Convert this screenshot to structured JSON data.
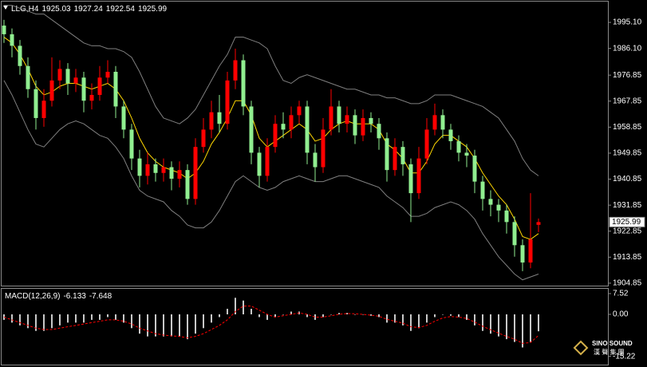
{
  "chart_data": [
    {
      "type": "candlestick",
      "title": "LLG,H4",
      "up_color": "#ff0000",
      "down_color": "#90ee90",
      "open": [
        1994,
        1991,
        1987,
        1980,
        1972,
        1962,
        1968,
        1975,
        1979,
        1974,
        1976,
        1968,
        1970,
        1976,
        1978,
        1966,
        1958,
        1948,
        1942,
        1946,
        1943,
        1945,
        1941,
        1944,
        1934,
        1952,
        1958,
        1964,
        1960,
        1975,
        1982,
        1966,
        1950,
        1942,
        1952,
        1960,
        1958,
        1963,
        1966,
        1950,
        1945,
        1958,
        1966,
        1960,
        1963,
        1956,
        1962,
        1960,
        1955,
        1944,
        1952,
        1946,
        1936,
        1948,
        1958,
        1963,
        1958,
        1954,
        1950,
        1949,
        1940,
        1934,
        1932,
        1930,
        1926,
        1918,
        1912,
        1925.03
      ],
      "high": [
        1996,
        1993,
        1989,
        1983,
        1975,
        1972,
        1983,
        1982,
        1981,
        1979,
        1978,
        1974,
        1980,
        1982,
        1980,
        1968,
        1960,
        1951,
        1950,
        1948,
        1948,
        1947,
        1947,
        1946,
        1955,
        1962,
        1968,
        1970,
        1978,
        1986,
        1984,
        1968,
        1952,
        1955,
        1963,
        1964,
        1966,
        1968,
        1968,
        1953,
        1962,
        1972,
        1968,
        1966,
        1965,
        1965,
        1964,
        1962,
        1957,
        1955,
        1954,
        1948,
        1952,
        1962,
        1967,
        1965,
        1960,
        1956,
        1953,
        1951,
        1942,
        1937,
        1934,
        1932,
        1928,
        1920,
        1936,
        1927.24
      ],
      "low": [
        1988,
        1983,
        1977,
        1969,
        1958,
        1959,
        1966,
        1972,
        1970,
        1971,
        1964,
        1965,
        1968,
        1974,
        1962,
        1955,
        1944,
        1938,
        1939,
        1940,
        1940,
        1937,
        1938,
        1932,
        1932,
        1950,
        1955,
        1957,
        1958,
        1972,
        1963,
        1946,
        1938,
        1940,
        1950,
        1955,
        1955,
        1960,
        1946,
        1940,
        1943,
        1956,
        1957,
        1957,
        1953,
        1954,
        1957,
        1951,
        1940,
        1942,
        1942,
        1926,
        1934,
        1946,
        1956,
        1955,
        1951,
        1947,
        1945,
        1936,
        1930,
        1928,
        1926,
        1922,
        1914,
        1909,
        1910,
        1922.54
      ],
      "close": [
        1991,
        1987,
        1980,
        1972,
        1962,
        1968,
        1975,
        1979,
        1974,
        1976,
        1968,
        1970,
        1976,
        1978,
        1966,
        1958,
        1948,
        1942,
        1946,
        1943,
        1945,
        1941,
        1944,
        1934,
        1952,
        1958,
        1964,
        1960,
        1975,
        1982,
        1966,
        1950,
        1942,
        1952,
        1960,
        1958,
        1963,
        1966,
        1950,
        1945,
        1958,
        1966,
        1960,
        1963,
        1956,
        1962,
        1960,
        1955,
        1944,
        1952,
        1946,
        1936,
        1948,
        1958,
        1963,
        1958,
        1954,
        1950,
        1949,
        1940,
        1934,
        1932,
        1930,
        1926,
        1918,
        1912,
        1920,
        1925.99
      ],
      "series": [
        {
          "color": "#ffd700",
          "values": [
            1990,
            1988,
            1984,
            1979,
            1973,
            1970,
            1971,
            1973,
            1974,
            1974,
            1973,
            1972,
            1973,
            1974,
            1972,
            1968,
            1962,
            1955,
            1950,
            1947,
            1945,
            1944,
            1943,
            1941,
            1943,
            1947,
            1953,
            1957,
            1962,
            1968,
            1968,
            1963,
            1955,
            1952,
            1954,
            1956,
            1958,
            1960,
            1958,
            1954,
            1955,
            1958,
            1960,
            1961,
            1960,
            1960,
            1960,
            1958,
            1953,
            1951,
            1948,
            1943,
            1943,
            1947,
            1953,
            1956,
            1956,
            1954,
            1952,
            1948,
            1943,
            1939,
            1935,
            1932,
            1927,
            1921,
            1920,
            1922
          ]
        },
        {
          "color": "#7f7f7f",
          "values": [
            2001,
            2001,
            2000,
            1999,
            1998,
            1998,
            1996,
            1994,
            1992,
            1990,
            1988,
            1987,
            1987,
            1986,
            1986,
            1985,
            1983,
            1978,
            1972,
            1966,
            1962,
            1961,
            1960,
            1962,
            1965,
            1970,
            1975,
            1980,
            1984,
            1990,
            1990,
            1989,
            1988,
            1986,
            1980,
            1975,
            1974,
            1976,
            1977,
            1976,
            1975,
            1974,
            1973,
            1972,
            1972,
            1971,
            1970,
            1970,
            1969,
            1969,
            1968,
            1967,
            1967,
            1968,
            1970,
            1970,
            1970,
            1969,
            1968,
            1967,
            1966,
            1964,
            1962,
            1958,
            1954,
            1948,
            1944,
            1942
          ]
        },
        {
          "color": "#7f7f7f",
          "values": [
            1975,
            1970,
            1964,
            1958,
            1953,
            1952,
            1955,
            1958,
            1960,
            1961,
            1960,
            1958,
            1956,
            1955,
            1952,
            1948,
            1942,
            1937,
            1935,
            1934,
            1933,
            1930,
            1928,
            1925,
            1924,
            1924,
            1926,
            1930,
            1935,
            1940,
            1942,
            1940,
            1938,
            1937,
            1938,
            1940,
            1941,
            1942,
            1941,
            1940,
            1940,
            1941,
            1942,
            1942,
            1941,
            1940,
            1939,
            1938,
            1935,
            1933,
            1931,
            1928,
            1928,
            1929,
            1931,
            1932,
            1933,
            1932,
            1930,
            1927,
            1922,
            1918,
            1914,
            1911,
            1908,
            1906,
            1907,
            1908
          ]
        }
      ],
      "ylim": [
        1904.0,
        2002.3
      ],
      "yticks": [
        {
          "value": 1995.1,
          "label": "1995.10"
        },
        {
          "value": 1986.1,
          "label": "1986.10"
        },
        1976.85,
        1967.85,
        1958.85,
        1949.85,
        1940.85,
        1931.85,
        1922.85,
        1913.85,
        1904.85
      ]
    },
    {
      "type": "macd",
      "title": "MACD(12,26,9)",
      "series": [
        {
          "color": "#c8c8c8",
          "values": [
            -2,
            -3,
            -4,
            -5,
            -6,
            -6,
            -5,
            -4,
            -3,
            -3,
            -3,
            -2,
            -2,
            -1,
            -2,
            -3,
            -5,
            -7,
            -8,
            -8,
            -8,
            -8,
            -8,
            -9,
            -7,
            -5,
            -3,
            -1,
            2,
            6,
            5,
            2,
            -1,
            -2,
            -1,
            0,
            1,
            1,
            -1,
            -2,
            -1,
            0,
            0.5,
            0.5,
            0,
            0,
            -0.5,
            -1,
            -3,
            -3,
            -4,
            -6,
            -5,
            -3,
            -1,
            0,
            -0.5,
            -1,
            -2,
            -4,
            -6,
            -7,
            -8,
            -9,
            -10,
            -12,
            -10,
            -6.133
          ]
        },
        {
          "color": "#ff0000",
          "values": [
            -1,
            -2,
            -3,
            -4,
            -5,
            -5.5,
            -5.5,
            -5,
            -4.5,
            -4,
            -3.5,
            -3,
            -2.5,
            -2,
            -2,
            -2.5,
            -3.5,
            -5,
            -6,
            -7,
            -7.5,
            -7.8,
            -8,
            -8.5,
            -8,
            -7,
            -5.5,
            -4,
            -2,
            1,
            3,
            3,
            1.5,
            0,
            -1,
            -0.5,
            0,
            0.5,
            0,
            -1,
            -1,
            -0.5,
            0,
            0.3,
            0.2,
            0,
            -0.3,
            -0.7,
            -1.8,
            -2.5,
            -3.2,
            -4.5,
            -4.8,
            -4,
            -2.5,
            -1.3,
            -0.8,
            -1,
            -1.5,
            -2.8,
            -4.3,
            -5.6,
            -6.8,
            -8,
            -9,
            -10.5,
            -10.2,
            -7.648
          ]
        }
      ],
      "ylim": [
        -18.5,
        9.25
      ],
      "yticks": [
        7.52,
        {
          "value": 0,
          "label": "0.00"
        },
        -15.22
      ]
    }
  ],
  "logo": {
    "name": "SINO SOUND",
    "sub": "漢 聲 集 團"
  }
}
